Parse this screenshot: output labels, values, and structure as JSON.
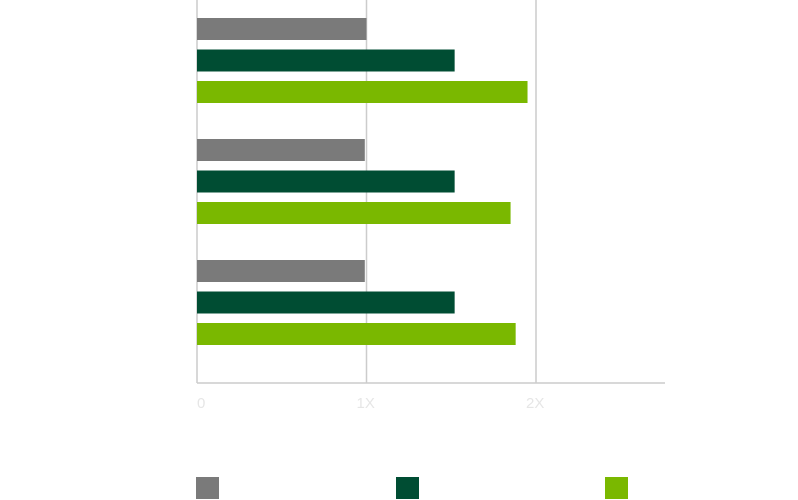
{
  "chart_data": {
    "type": "bar",
    "orientation": "horizontal",
    "categories": [
      "",
      "",
      ""
    ],
    "series": [
      {
        "values": [
          1.0,
          0.99,
          0.99
        ],
        "color": "#7a7a7a"
      },
      {
        "values": [
          1.52,
          1.52,
          1.52
        ],
        "color": "#004d33"
      },
      {
        "values": [
          1.95,
          1.85,
          1.88
        ],
        "color": "#7ab800"
      }
    ],
    "x_ticks": [
      {
        "value": 0,
        "label": "0"
      },
      {
        "value": 1,
        "label": "1X"
      },
      {
        "value": 2,
        "label": "2X"
      }
    ],
    "xlim": [
      0,
      2.75
    ],
    "gridlines": true,
    "legend_position": "bottom",
    "title": "",
    "xlabel": "",
    "ylabel": ""
  }
}
